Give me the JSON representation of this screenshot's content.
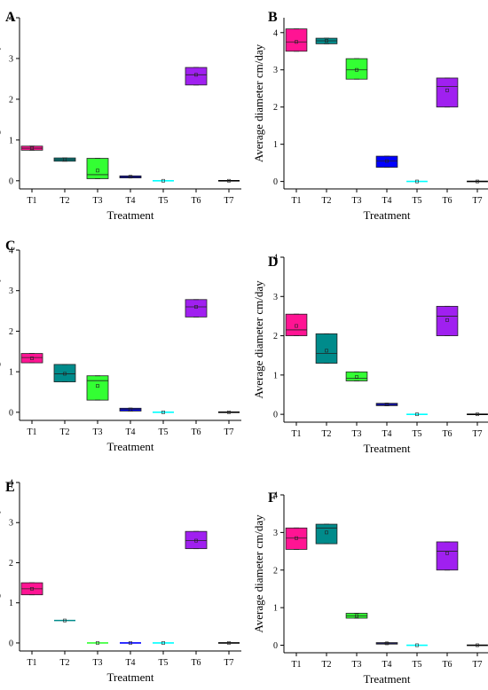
{
  "figure": {
    "panels": [
      {
        "letter": "A"
      },
      {
        "letter": "B"
      },
      {
        "letter": "C"
      },
      {
        "letter": "D"
      },
      {
        "letter": "E"
      },
      {
        "letter": "F"
      }
    ]
  },
  "chart_data": [
    {
      "type": "box",
      "panel": "A",
      "xlabel": "Treatment",
      "ylabel": "Average diameter cm/day",
      "ylim": [
        -0.2,
        4
      ],
      "yticks": [
        0,
        1,
        2,
        3,
        4
      ],
      "categories": [
        "T1",
        "T2",
        "T3",
        "T4",
        "T5",
        "T6",
        "T7"
      ],
      "colors": [
        "#ff1493",
        "#008b8b",
        "#33ff33",
        "#0000ff",
        "#00ffff",
        "#a020f0",
        "#000000"
      ],
      "boxes": [
        {
          "q1": 0.75,
          "median": 0.8,
          "q3": 0.85,
          "mean": 0.8
        },
        {
          "q1": 0.48,
          "median": 0.52,
          "q3": 0.56,
          "mean": 0.52
        },
        {
          "q1": 0.05,
          "median": 0.15,
          "q3": 0.55,
          "mean": 0.25
        },
        {
          "q1": 0.07,
          "median": 0.1,
          "q3": 0.12,
          "mean": 0.1
        },
        {
          "q1": 0.0,
          "median": 0.0,
          "q3": 0.0,
          "mean": 0.0
        },
        {
          "q1": 2.35,
          "median": 2.6,
          "q3": 2.78,
          "mean": 2.6
        },
        {
          "q1": 0.0,
          "median": 0.0,
          "q3": 0.0,
          "mean": 0.0
        }
      ]
    },
    {
      "type": "box",
      "panel": "B",
      "xlabel": "Treatment",
      "ylabel": "Average diameter cm/day",
      "ylim": [
        -0.2,
        4.4
      ],
      "yticks": [
        0,
        1,
        2,
        3,
        4
      ],
      "categories": [
        "T1",
        "T2",
        "T3",
        "T4",
        "T5",
        "T6",
        "T7"
      ],
      "colors": [
        "#ff1493",
        "#008b8b",
        "#33ff33",
        "#0000ff",
        "#00ffff",
        "#a020f0",
        "#000000"
      ],
      "boxes": [
        {
          "q1": 3.5,
          "median": 3.75,
          "q3": 4.1,
          "mean": 3.75
        },
        {
          "q1": 3.7,
          "median": 3.78,
          "q3": 3.85,
          "mean": 3.78
        },
        {
          "q1": 2.75,
          "median": 3.0,
          "q3": 3.3,
          "mean": 3.0
        },
        {
          "q1": 0.38,
          "median": 0.55,
          "q3": 0.68,
          "mean": 0.55
        },
        {
          "q1": 0.0,
          "median": 0.0,
          "q3": 0.0,
          "mean": 0.0
        },
        {
          "q1": 2.0,
          "median": 2.55,
          "q3": 2.78,
          "mean": 2.45
        },
        {
          "q1": 0.0,
          "median": 0.0,
          "q3": 0.0,
          "mean": 0.0
        }
      ]
    },
    {
      "type": "box",
      "panel": "C",
      "xlabel": "Treatment",
      "ylabel": "Average diameter cm/day",
      "ylim": [
        -0.2,
        4
      ],
      "yticks": [
        0,
        1,
        2,
        3,
        4
      ],
      "categories": [
        "T1",
        "T2",
        "T3",
        "T4",
        "T5",
        "T6",
        "T7"
      ],
      "colors": [
        "#ff1493",
        "#008b8b",
        "#33ff33",
        "#0000ff",
        "#00ffff",
        "#a020f0",
        "#000000"
      ],
      "boxes": [
        {
          "q1": 1.22,
          "median": 1.35,
          "q3": 1.45,
          "mean": 1.33
        },
        {
          "q1": 0.75,
          "median": 0.95,
          "q3": 1.18,
          "mean": 0.95
        },
        {
          "q1": 0.3,
          "median": 0.78,
          "q3": 0.9,
          "mean": 0.65
        },
        {
          "q1": 0.03,
          "median": 0.07,
          "q3": 0.1,
          "mean": 0.07
        },
        {
          "q1": 0.0,
          "median": 0.0,
          "q3": 0.0,
          "mean": 0.0
        },
        {
          "q1": 2.35,
          "median": 2.6,
          "q3": 2.78,
          "mean": 2.6
        },
        {
          "q1": 0.0,
          "median": 0.0,
          "q3": 0.0,
          "mean": 0.0
        }
      ]
    },
    {
      "type": "box",
      "panel": "D",
      "xlabel": "Treatment",
      "ylabel": "Average diameter cm/day",
      "ylim": [
        -0.2,
        4
      ],
      "yticks": [
        0,
        1,
        2,
        3,
        4
      ],
      "categories": [
        "T1",
        "T2",
        "T3",
        "T4",
        "T5",
        "T6",
        "T7"
      ],
      "colors": [
        "#ff1493",
        "#008b8b",
        "#33ff33",
        "#0000ff",
        "#00ffff",
        "#a020f0",
        "#000000"
      ],
      "boxes": [
        {
          "q1": 2.0,
          "median": 2.15,
          "q3": 2.55,
          "mean": 2.25
        },
        {
          "q1": 1.3,
          "median": 1.55,
          "q3": 2.05,
          "mean": 1.62
        },
        {
          "q1": 0.85,
          "median": 0.92,
          "q3": 1.08,
          "mean": 0.95
        },
        {
          "q1": 0.22,
          "median": 0.25,
          "q3": 0.28,
          "mean": 0.25
        },
        {
          "q1": 0.0,
          "median": 0.0,
          "q3": 0.0,
          "mean": 0.0
        },
        {
          "q1": 2.0,
          "median": 2.5,
          "q3": 2.75,
          "mean": 2.4
        },
        {
          "q1": 0.0,
          "median": 0.0,
          "q3": 0.0,
          "mean": 0.0
        }
      ]
    },
    {
      "type": "box",
      "panel": "E",
      "xlabel": "Treatment",
      "ylabel": "Average diameter cm/day",
      "ylim": [
        -0.2,
        4
      ],
      "yticks": [
        0,
        1,
        2,
        3,
        4
      ],
      "categories": [
        "T1",
        "T2",
        "T3",
        "T4",
        "T5",
        "T6",
        "T7"
      ],
      "colors": [
        "#ff1493",
        "#008b8b",
        "#33ff33",
        "#0000ff",
        "#00ffff",
        "#a020f0",
        "#000000"
      ],
      "boxes": [
        {
          "q1": 1.2,
          "median": 1.35,
          "q3": 1.5,
          "mean": 1.35
        },
        {
          "q1": 0.56,
          "median": 0.56,
          "q3": 0.56,
          "mean": 0.56
        },
        {
          "q1": 0.0,
          "median": 0.0,
          "q3": 0.0,
          "mean": 0.0
        },
        {
          "q1": 0.0,
          "median": 0.0,
          "q3": 0.0,
          "mean": 0.0
        },
        {
          "q1": 0.0,
          "median": 0.0,
          "q3": 0.0,
          "mean": 0.0
        },
        {
          "q1": 2.35,
          "median": 2.55,
          "q3": 2.78,
          "mean": 2.55
        },
        {
          "q1": 0.0,
          "median": 0.0,
          "q3": 0.0,
          "mean": 0.0
        }
      ]
    },
    {
      "type": "box",
      "panel": "F",
      "xlabel": "Treatment",
      "ylabel": "Average diameter cm/day",
      "ylim": [
        -0.2,
        4
      ],
      "yticks": [
        0,
        1,
        2,
        3,
        4
      ],
      "categories": [
        "T1",
        "T2",
        "T3",
        "T4",
        "T5",
        "T6",
        "T7"
      ],
      "colors": [
        "#ff1493",
        "#008b8b",
        "#33ff33",
        "#0000ff",
        "#00ffff",
        "#a020f0",
        "#000000"
      ],
      "boxes": [
        {
          "q1": 2.55,
          "median": 2.85,
          "q3": 3.12,
          "mean": 2.85
        },
        {
          "q1": 2.7,
          "median": 3.12,
          "q3": 3.22,
          "mean": 3.0
        },
        {
          "q1": 0.72,
          "median": 0.78,
          "q3": 0.85,
          "mean": 0.78
        },
        {
          "q1": 0.03,
          "median": 0.05,
          "q3": 0.07,
          "mean": 0.05
        },
        {
          "q1": 0.0,
          "median": 0.0,
          "q3": 0.0,
          "mean": 0.0
        },
        {
          "q1": 2.0,
          "median": 2.5,
          "q3": 2.75,
          "mean": 2.45
        },
        {
          "q1": 0.0,
          "median": 0.0,
          "q3": 0.0,
          "mean": 0.0
        }
      ]
    }
  ]
}
